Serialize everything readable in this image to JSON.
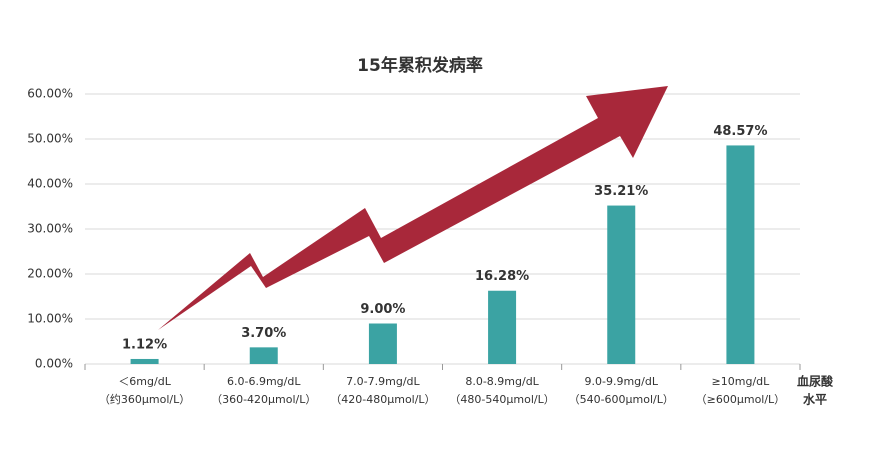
{
  "chart_data": {
    "type": "bar",
    "title": "15年累积发病率",
    "categories": [
      [
        "＜6mg/dL",
        "（约360μmol/L）"
      ],
      [
        "6.0-6.9mg/dL",
        "（360-420μmol/L）"
      ],
      [
        "7.0-7.9mg/dL",
        "（420-480μmol/L）"
      ],
      [
        "8.0-8.9mg/dL",
        "（480-540μmol/L）"
      ],
      [
        "9.0-9.9mg/dL",
        "（540-600μmol/L）"
      ],
      [
        "≥10mg/dL",
        "（≥600μmol/L）"
      ]
    ],
    "values": [
      1.12,
      3.7,
      9.0,
      16.28,
      35.21,
      48.57
    ],
    "value_labels": [
      "1.12%",
      "3.70%",
      "9.00%",
      "16.28%",
      "35.21%",
      "48.57%"
    ],
    "color": "#3ba3a3",
    "x_label": [
      "血尿酸",
      "水平"
    ],
    "ylim": [
      0,
      60
    ],
    "yticks": [
      {
        "value": 0,
        "label": "0.00%"
      },
      {
        "value": 10,
        "label": "10.00%"
      },
      {
        "value": 20,
        "label": "20.00%"
      },
      {
        "value": 30,
        "label": "30.00%"
      },
      {
        "value": 40,
        "label": "40.00%"
      },
      {
        "value": 50,
        "label": "50.00%"
      },
      {
        "value": 60,
        "label": "60.00%"
      }
    ],
    "grid": true
  }
}
